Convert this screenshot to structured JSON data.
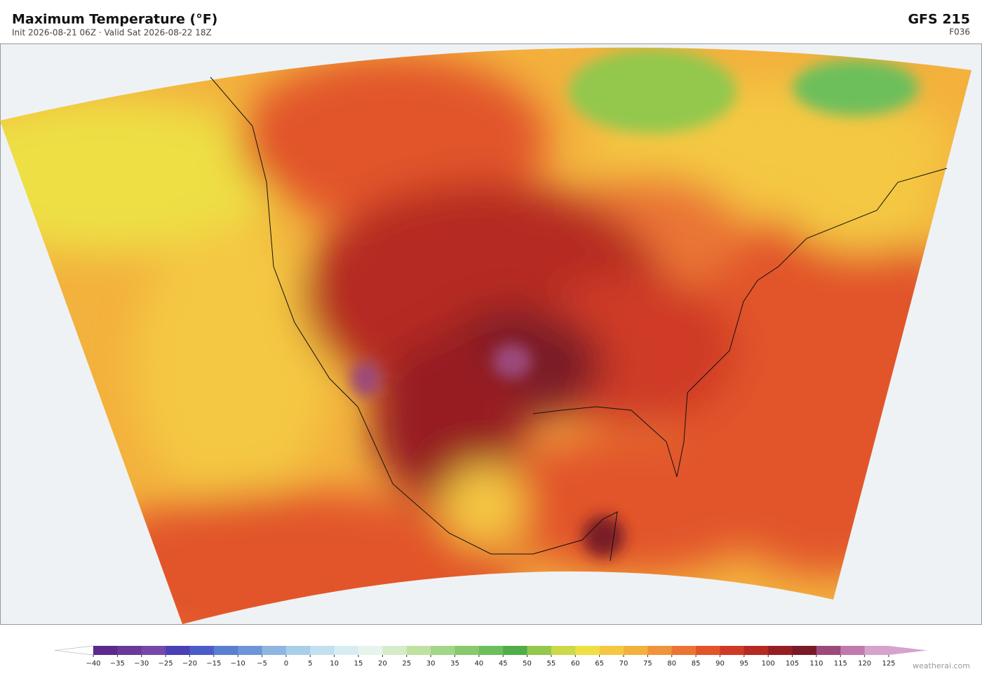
{
  "header": {
    "title": "Maximum Temperature  (°F)",
    "subtitle": "Init 2026-08-21 06Z  ·  Valid Sat 2026-08-22 18Z",
    "model": "GFS  215",
    "forecast": "F036"
  },
  "colorbar": {
    "ticks": [
      {
        "value": -40,
        "label": "−40"
      },
      {
        "value": -35,
        "label": "−35"
      },
      {
        "value": -30,
        "label": "−30"
      },
      {
        "value": -25,
        "label": "−25"
      },
      {
        "value": -20,
        "label": "−20"
      },
      {
        "value": -15,
        "label": "−15"
      },
      {
        "value": -10,
        "label": "−10"
      },
      {
        "value": -5,
        "label": "−5"
      },
      0,
      5,
      10,
      15,
      20,
      25,
      30,
      35,
      40,
      45,
      50,
      55,
      60,
      65,
      70,
      75,
      80,
      85,
      90,
      95,
      100,
      105,
      110,
      115,
      120,
      125
    ],
    "colors": [
      "#5b2a8c",
      "#6a3a9a",
      "#7648a8",
      "#4a3fb5",
      "#4b5cc8",
      "#5a7ed0",
      "#6e95d8",
      "#8fb6e0",
      "#a9cfe8",
      "#c2e0ef",
      "#d8edf2",
      "#e6f4ec",
      "#d5ecc8",
      "#bfe2a3",
      "#a2d688",
      "#88c96c",
      "#6dbf5c",
      "#4fae4a",
      "#93c84d",
      "#cbd94a",
      "#eedf45",
      "#f4c842",
      "#f3b13d",
      "#f0933a",
      "#ea7434",
      "#e2542a",
      "#cf3a25",
      "#b52a22",
      "#961e22",
      "#7a1a26",
      "#9c4a7a",
      "#c07aad",
      "#d6a3cd"
    ],
    "under_color": "#ffffff",
    "over_color": "#d6a3cd"
  },
  "footer": {
    "watermark": "weatherai.com"
  }
}
